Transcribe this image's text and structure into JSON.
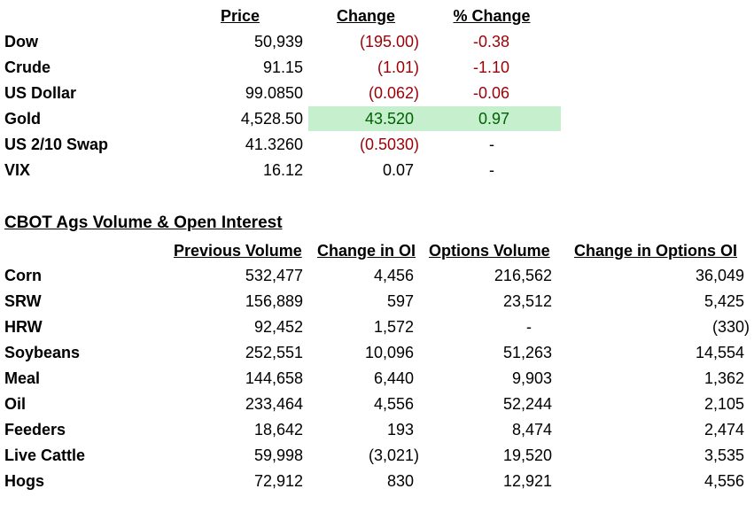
{
  "markets": {
    "columns": [
      "Price",
      "Change",
      "% Change"
    ],
    "rows": [
      [
        "Dow",
        "50,939",
        "(195.00)",
        "-0.38"
      ],
      [
        "Crude",
        "91.15",
        "(1.01)",
        "-1.10"
      ],
      [
        "US Dollar",
        "99.0850",
        "(0.062)",
        "-0.06"
      ],
      [
        "Gold",
        "4,528.50",
        "43.520",
        "0.97"
      ],
      [
        "US 2/10 Swap",
        "41.3260",
        "(0.5030)",
        "-"
      ],
      [
        "VIX",
        "16.12",
        "0.07",
        "-"
      ]
    ]
  },
  "cbot": {
    "title": "CBOT Ags Volume & Open Interest",
    "columns": [
      "Previous Volume",
      "Change in OI",
      "Options Volume",
      "Change in Options OI"
    ],
    "rows": [
      [
        "Corn",
        "532,477",
        "4,456",
        "216,562",
        "36,049"
      ],
      [
        "SRW",
        "156,889",
        "597",
        "23,512",
        "5,425"
      ],
      [
        "HRW",
        "92,452",
        "1,572",
        "-",
        "(330)"
      ],
      [
        "Soybeans",
        "252,551",
        "10,096",
        "51,263",
        "14,554"
      ],
      [
        "Meal",
        "144,658",
        "6,440",
        "9,903",
        "1,362"
      ],
      [
        "Oil",
        "233,464",
        "4,556",
        "52,244",
        "2,105"
      ],
      [
        "Feeders",
        "18,642",
        "193",
        "8,474",
        "2,474"
      ],
      [
        "Live Cattle",
        "59,998",
        "(3,021)",
        "19,520",
        "3,535"
      ],
      [
        "Hogs",
        "72,912",
        "830",
        "12,921",
        "4,556"
      ]
    ]
  }
}
